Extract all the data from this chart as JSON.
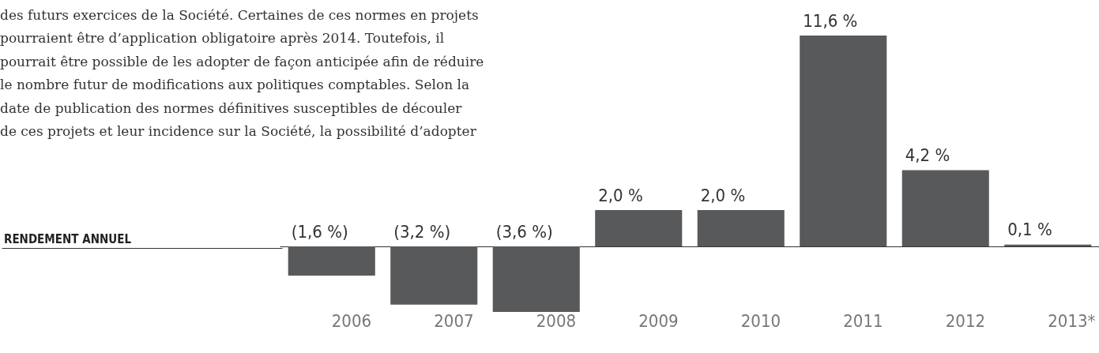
{
  "chart_data": {
    "type": "bar",
    "title": "RENDEMENT ANNUEL",
    "annotations": [
      "des futurs exercices de la Société. Certaines de ces normes en projets\npourraient être d’application obligatoire après 2014. Toutefois, il\npourrait être possible de les adopter de façon anticipée afin de réduire\nle nombre futur de modifications aux politiques comptables. Selon la\ndate de publication des normes définitives susceptibles de découler\nde ces projets et leur incidence sur la Société, la possibilité d’adopter"
    ],
    "categories": [
      "2006",
      "2007",
      "2008",
      "2009",
      "2010",
      "2011",
      "2012",
      "2013*"
    ],
    "values": [
      -1.6,
      -3.2,
      -3.6,
      2.0,
      2.0,
      11.6,
      4.2,
      0.1
    ],
    "value_labels": [
      "(1,6 %)",
      "(3,2 %)",
      "(3,6 %)",
      "2,0 %",
      "2,0 %",
      "11,6 %",
      "4,2 %",
      "0,1 %"
    ],
    "color": "#58595b",
    "grid": false
  }
}
